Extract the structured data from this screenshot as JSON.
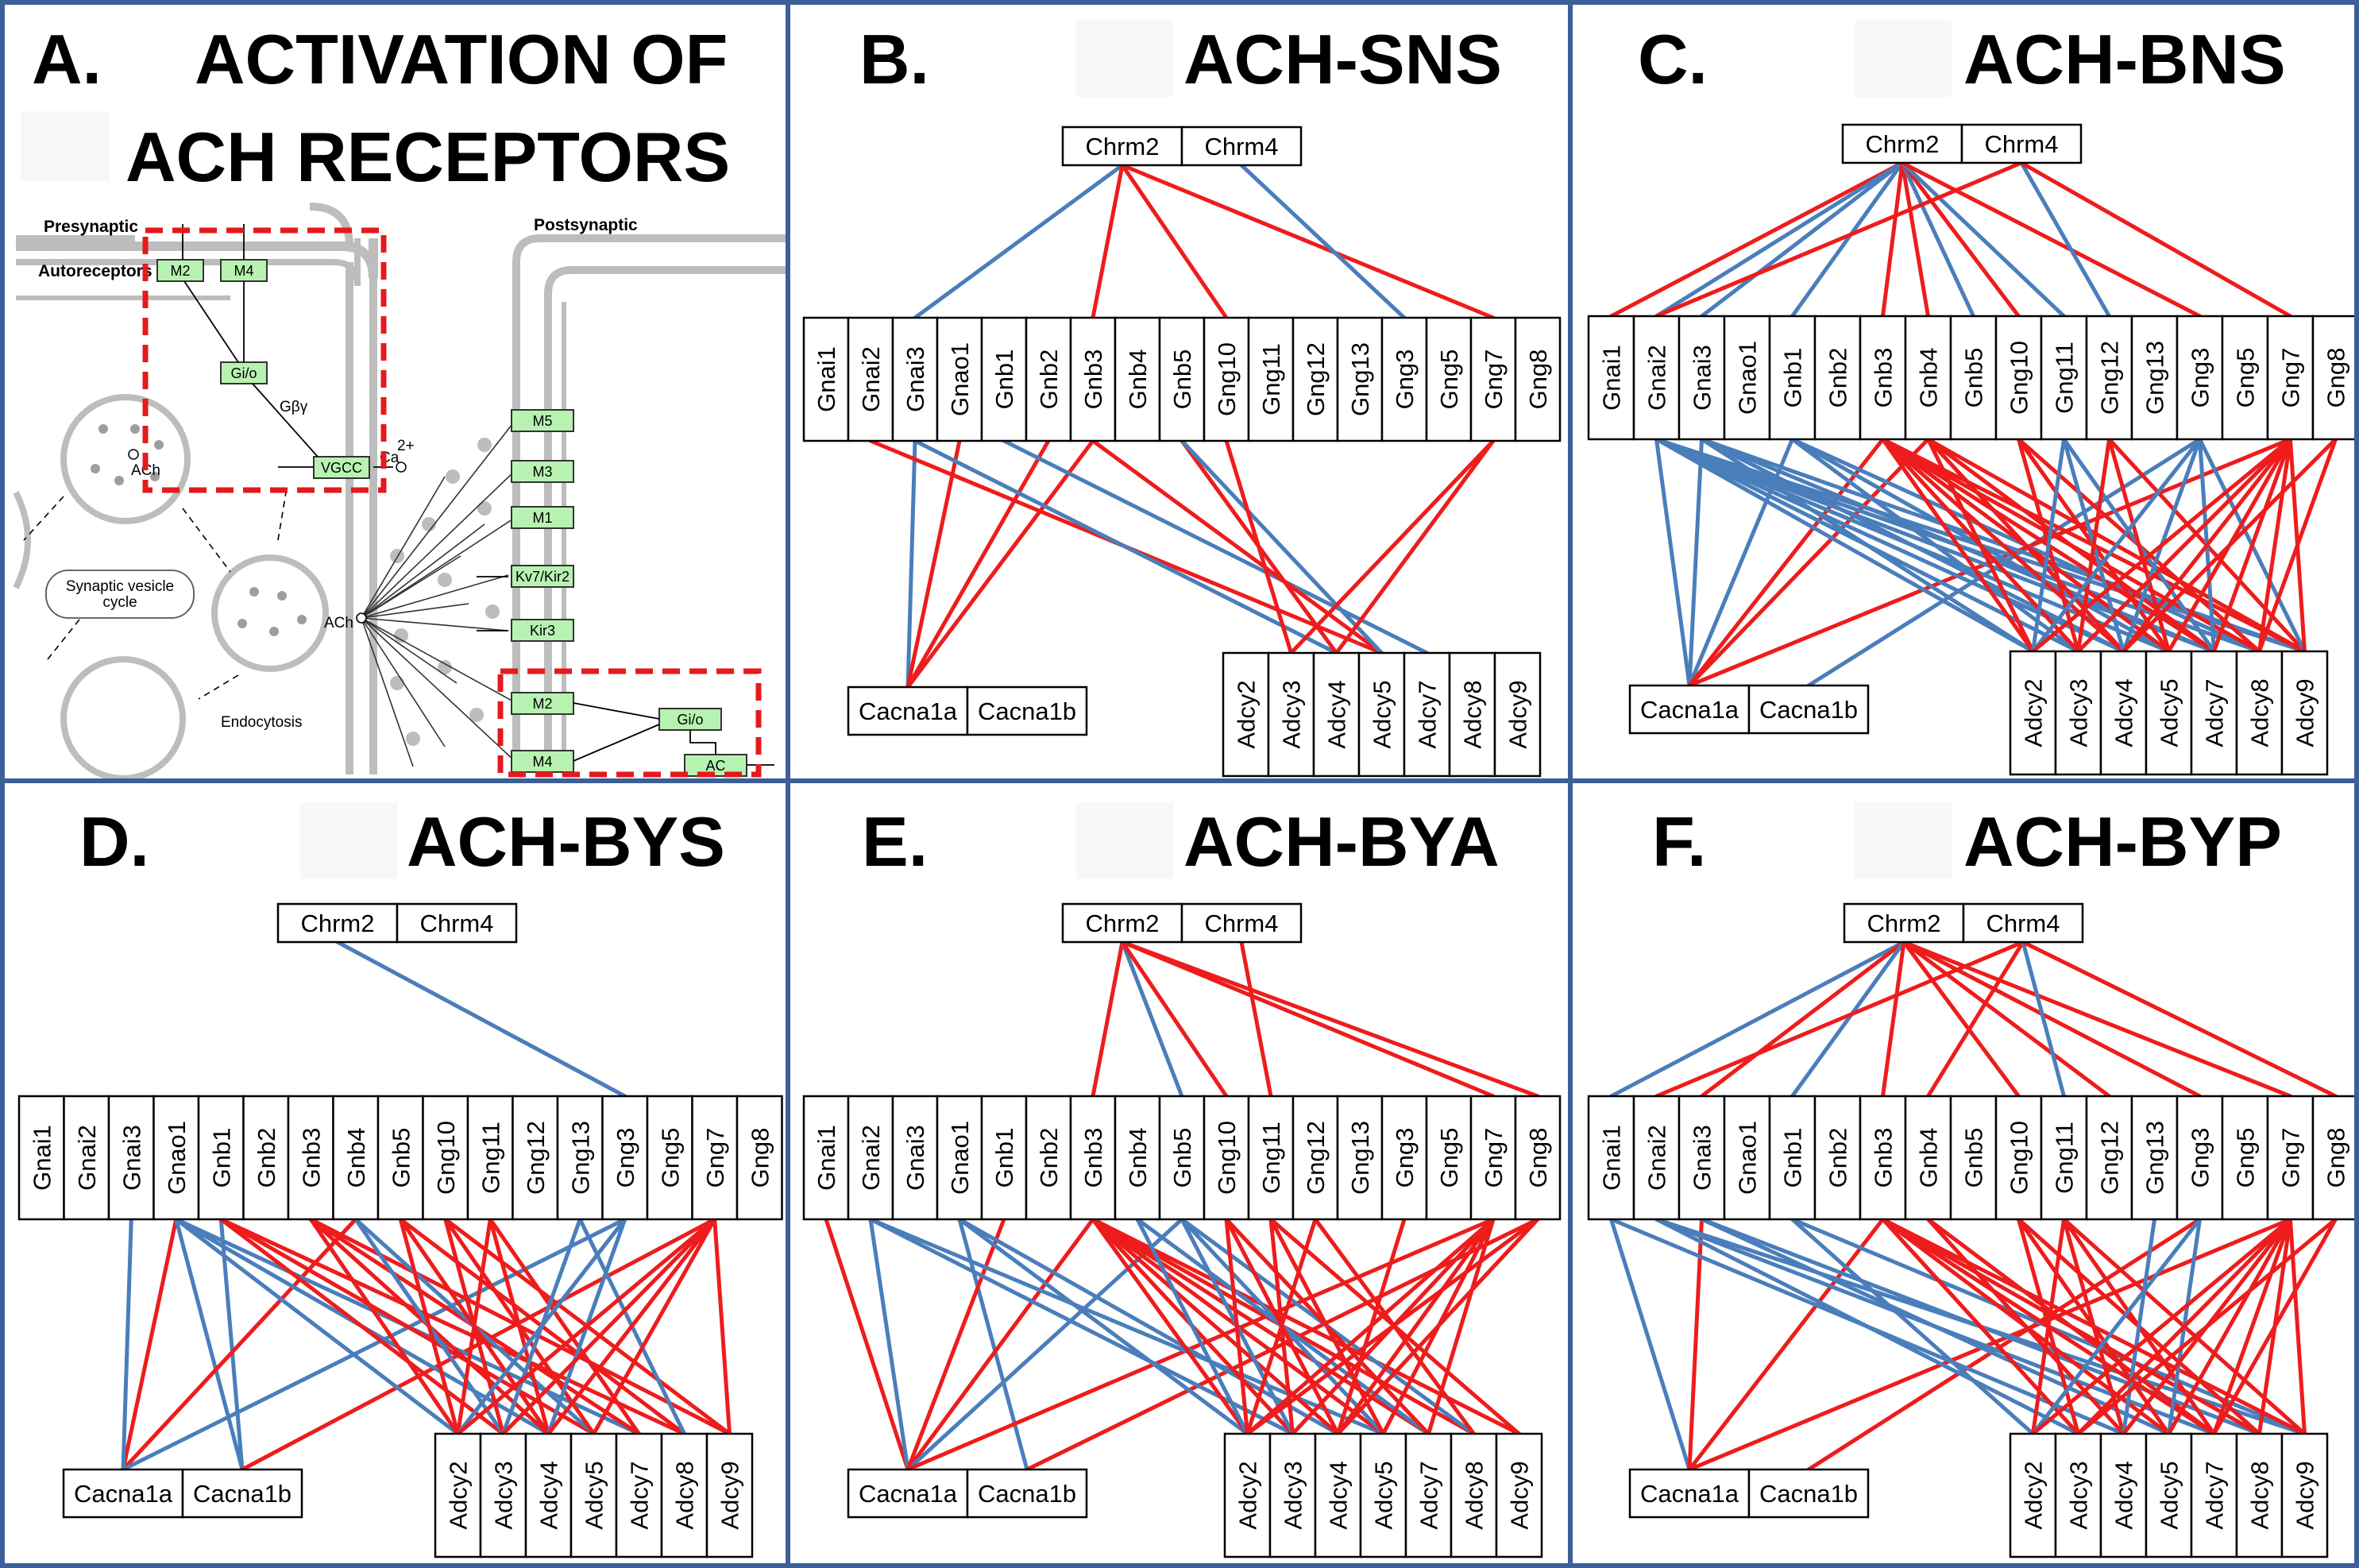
{
  "colors": {
    "positive_edge": "#ee1c1c",
    "negative_edge": "#4a7ebb",
    "border": "#3c5f97",
    "kegg_node": "#b7f2b1",
    "highlight_box": "#e41a1c"
  },
  "labels": {
    "chrm": [
      "Chrm2",
      "Chrm4"
    ],
    "g": [
      "Gnai1",
      "Gnai2",
      "Gnai3",
      "Gnao1",
      "Gnb1",
      "Gnb2",
      "Gnb3",
      "Gnb4",
      "Gnb5",
      "Gng10",
      "Gng11",
      "Gng12",
      "Gng13",
      "Gng3",
      "Gng5",
      "Gng7",
      "Gng8"
    ],
    "cac": [
      "Cacna1a",
      "Cacna1b"
    ],
    "adcy": [
      "Adcy2",
      "Adcy3",
      "Adcy4",
      "Adcy5",
      "Adcy7",
      "Adcy8",
      "Adcy9"
    ]
  },
  "panel_a": {
    "letter": "A.",
    "title_line1": "ACTIVATION OF",
    "title_line2": "ACH RECEPTORS",
    "presynaptic": "Presynaptic",
    "postsynaptic": "Postsynaptic",
    "autoreceptors": "Autoreceptors",
    "nodes": {
      "m2_pre": "M2",
      "m4_pre": "M4",
      "gio_pre": "Gi/o",
      "vgcc": "VGCC",
      "m5": "M5",
      "m3": "M3",
      "m1": "M1",
      "kv": "Kv7/Kir2",
      "kir3": "Kir3",
      "m2_post": "M2",
      "m4_post": "M4",
      "gio_post": "Gi/o",
      "ac": "AC"
    },
    "gby": "Gβγ",
    "ca": "Ca",
    "ca_sup": "2+",
    "ach_vesicle": "ACh",
    "ach_release": "ACh",
    "vesicle_cycle_line1": "Synaptic vesicle",
    "vesicle_cycle_line2": "cycle",
    "endocytosis": "Endocytosis"
  },
  "panels": [
    {
      "id": "B",
      "letter": "B.",
      "name": "ACH-SNS",
      "chrm_g": [
        [
          0,
          2,
          "n"
        ],
        [
          0,
          6,
          "p"
        ],
        [
          0,
          9,
          "p"
        ],
        [
          0,
          15,
          "p"
        ],
        [
          1,
          13,
          "n"
        ]
      ],
      "g_cac": [
        [
          2,
          0,
          "n"
        ],
        [
          3,
          0,
          "p"
        ],
        [
          5,
          0,
          "p"
        ],
        [
          6,
          0,
          "p"
        ]
      ],
      "g_adcy": [
        [
          1,
          3,
          "p"
        ],
        [
          2,
          2,
          "n"
        ],
        [
          4,
          4,
          "n"
        ],
        [
          6,
          3,
          "p"
        ],
        [
          8,
          2,
          "p"
        ],
        [
          8,
          3,
          "n"
        ],
        [
          9,
          1,
          "p"
        ],
        [
          15,
          1,
          "p"
        ],
        [
          15,
          2,
          "p"
        ]
      ]
    },
    {
      "id": "C",
      "letter": "C.",
      "name": "ACH-BNS",
      "chrm_g": [
        [
          0,
          0,
          "p"
        ],
        [
          0,
          1,
          "n"
        ],
        [
          0,
          2,
          "n"
        ],
        [
          0,
          4,
          "n"
        ],
        [
          0,
          6,
          "p"
        ],
        [
          0,
          7,
          "p"
        ],
        [
          0,
          8,
          "n"
        ],
        [
          0,
          9,
          "p"
        ],
        [
          0,
          10,
          "n"
        ],
        [
          0,
          13,
          "p"
        ],
        [
          1,
          1,
          "p"
        ],
        [
          1,
          11,
          "n"
        ],
        [
          1,
          15,
          "p"
        ]
      ],
      "g_cac": [
        [
          1,
          0,
          "n"
        ],
        [
          2,
          0,
          "n"
        ],
        [
          4,
          0,
          "n"
        ],
        [
          6,
          0,
          "p"
        ],
        [
          7,
          0,
          "p"
        ],
        [
          13,
          1,
          "n"
        ],
        [
          15,
          0,
          "p"
        ]
      ],
      "g_adcy": [
        [
          1,
          0,
          "n"
        ],
        [
          1,
          1,
          "n"
        ],
        [
          1,
          2,
          "n"
        ],
        [
          1,
          3,
          "n"
        ],
        [
          1,
          4,
          "n"
        ],
        [
          1,
          5,
          "n"
        ],
        [
          1,
          6,
          "n"
        ],
        [
          2,
          0,
          "n"
        ],
        [
          2,
          2,
          "n"
        ],
        [
          2,
          4,
          "n"
        ],
        [
          2,
          6,
          "n"
        ],
        [
          4,
          1,
          "n"
        ],
        [
          4,
          3,
          "n"
        ],
        [
          4,
          5,
          "n"
        ],
        [
          6,
          0,
          "p"
        ],
        [
          6,
          1,
          "p"
        ],
        [
          6,
          2,
          "p"
        ],
        [
          6,
          3,
          "p"
        ],
        [
          6,
          4,
          "p"
        ],
        [
          6,
          5,
          "p"
        ],
        [
          6,
          6,
          "p"
        ],
        [
          7,
          0,
          "p"
        ],
        [
          7,
          2,
          "p"
        ],
        [
          7,
          4,
          "p"
        ],
        [
          7,
          6,
          "p"
        ],
        [
          9,
          1,
          "p"
        ],
        [
          9,
          3,
          "p"
        ],
        [
          9,
          5,
          "p"
        ],
        [
          10,
          0,
          "n"
        ],
        [
          10,
          2,
          "n"
        ],
        [
          10,
          4,
          "n"
        ],
        [
          11,
          1,
          "p"
        ],
        [
          11,
          3,
          "p"
        ],
        [
          11,
          6,
          "p"
        ],
        [
          13,
          0,
          "n"
        ],
        [
          13,
          2,
          "n"
        ],
        [
          13,
          4,
          "n"
        ],
        [
          13,
          6,
          "n"
        ],
        [
          15,
          0,
          "p"
        ],
        [
          15,
          1,
          "p"
        ],
        [
          15,
          2,
          "p"
        ],
        [
          15,
          3,
          "p"
        ],
        [
          15,
          4,
          "p"
        ],
        [
          15,
          5,
          "p"
        ],
        [
          15,
          6,
          "p"
        ],
        [
          16,
          2,
          "p"
        ],
        [
          16,
          5,
          "p"
        ]
      ]
    },
    {
      "id": "D",
      "letter": "D.",
      "name": "ACH-BYS",
      "chrm_g": [
        [
          0,
          13,
          "n"
        ]
      ],
      "g_cac": [
        [
          3,
          0,
          "p"
        ],
        [
          3,
          1,
          "n"
        ],
        [
          4,
          1,
          "n"
        ],
        [
          7,
          0,
          "p"
        ],
        [
          13,
          0,
          "n"
        ],
        [
          15,
          1,
          "p"
        ],
        [
          2,
          0,
          "n"
        ]
      ],
      "g_adcy": [
        [
          3,
          0,
          "n"
        ],
        [
          3,
          2,
          "n"
        ],
        [
          3,
          4,
          "n"
        ],
        [
          4,
          1,
          "p"
        ],
        [
          4,
          3,
          "p"
        ],
        [
          4,
          5,
          "p"
        ],
        [
          6,
          0,
          "p"
        ],
        [
          6,
          2,
          "p"
        ],
        [
          6,
          4,
          "p"
        ],
        [
          6,
          6,
          "p"
        ],
        [
          7,
          1,
          "n"
        ],
        [
          7,
          3,
          "n"
        ],
        [
          8,
          0,
          "p"
        ],
        [
          8,
          2,
          "p"
        ],
        [
          8,
          5,
          "p"
        ],
        [
          9,
          1,
          "p"
        ],
        [
          9,
          3,
          "p"
        ],
        [
          9,
          6,
          "p"
        ],
        [
          10,
          0,
          "p"
        ],
        [
          10,
          2,
          "p"
        ],
        [
          10,
          4,
          "p"
        ],
        [
          12,
          1,
          "n"
        ],
        [
          12,
          5,
          "n"
        ],
        [
          13,
          0,
          "n"
        ],
        [
          13,
          2,
          "n"
        ],
        [
          15,
          0,
          "p"
        ],
        [
          15,
          1,
          "p"
        ],
        [
          15,
          2,
          "p"
        ],
        [
          15,
          3,
          "p"
        ],
        [
          15,
          6,
          "p"
        ]
      ]
    },
    {
      "id": "E",
      "letter": "E.",
      "name": "ACH-BYA",
      "chrm_g": [
        [
          0,
          6,
          "p"
        ],
        [
          0,
          8,
          "n"
        ],
        [
          0,
          9,
          "p"
        ],
        [
          0,
          15,
          "p"
        ],
        [
          0,
          16,
          "p"
        ],
        [
          1,
          10,
          "p"
        ]
      ],
      "g_cac": [
        [
          0,
          0,
          "p"
        ],
        [
          1,
          0,
          "n"
        ],
        [
          3,
          1,
          "n"
        ],
        [
          6,
          0,
          "p"
        ],
        [
          8,
          0,
          "n"
        ],
        [
          15,
          0,
          "p"
        ],
        [
          16,
          1,
          "p"
        ],
        [
          4,
          0,
          "p"
        ]
      ],
      "g_adcy": [
        [
          1,
          1,
          "n"
        ],
        [
          1,
          3,
          "n"
        ],
        [
          3,
          0,
          "n"
        ],
        [
          3,
          2,
          "n"
        ],
        [
          6,
          0,
          "p"
        ],
        [
          6,
          1,
          "p"
        ],
        [
          6,
          2,
          "p"
        ],
        [
          6,
          3,
          "p"
        ],
        [
          6,
          4,
          "p"
        ],
        [
          6,
          5,
          "p"
        ],
        [
          6,
          6,
          "p"
        ],
        [
          7,
          0,
          "n"
        ],
        [
          7,
          4,
          "n"
        ],
        [
          8,
          1,
          "n"
        ],
        [
          8,
          3,
          "n"
        ],
        [
          8,
          5,
          "n"
        ],
        [
          9,
          0,
          "p"
        ],
        [
          9,
          2,
          "p"
        ],
        [
          9,
          4,
          "p"
        ],
        [
          10,
          1,
          "p"
        ],
        [
          10,
          3,
          "p"
        ],
        [
          10,
          6,
          "p"
        ],
        [
          11,
          0,
          "p"
        ],
        [
          11,
          5,
          "p"
        ],
        [
          13,
          2,
          "p"
        ],
        [
          15,
          0,
          "p"
        ],
        [
          15,
          1,
          "p"
        ],
        [
          15,
          2,
          "p"
        ],
        [
          15,
          3,
          "p"
        ],
        [
          15,
          4,
          "p"
        ],
        [
          16,
          0,
          "p"
        ],
        [
          16,
          2,
          "p"
        ]
      ]
    },
    {
      "id": "F",
      "letter": "F.",
      "name": "ACH-BYP",
      "chrm_g": [
        [
          0,
          0,
          "n"
        ],
        [
          0,
          2,
          "p"
        ],
        [
          0,
          4,
          "n"
        ],
        [
          0,
          6,
          "p"
        ],
        [
          0,
          9,
          "p"
        ],
        [
          0,
          11,
          "p"
        ],
        [
          0,
          13,
          "p"
        ],
        [
          0,
          15,
          "p"
        ],
        [
          1,
          1,
          "p"
        ],
        [
          1,
          7,
          "p"
        ],
        [
          1,
          10,
          "n"
        ],
        [
          1,
          16,
          "p"
        ]
      ],
      "g_cac": [
        [
          0,
          0,
          "n"
        ],
        [
          2,
          0,
          "p"
        ],
        [
          6,
          0,
          "p"
        ],
        [
          13,
          1,
          "p"
        ],
        [
          15,
          0,
          "p"
        ]
      ],
      "g_adcy": [
        [
          0,
          2,
          "n"
        ],
        [
          1,
          1,
          "n"
        ],
        [
          1,
          4,
          "n"
        ],
        [
          1,
          6,
          "n"
        ],
        [
          2,
          3,
          "n"
        ],
        [
          2,
          5,
          "n"
        ],
        [
          4,
          0,
          "n"
        ],
        [
          4,
          6,
          "n"
        ],
        [
          6,
          1,
          "p"
        ],
        [
          6,
          3,
          "p"
        ],
        [
          6,
          4,
          "p"
        ],
        [
          6,
          5,
          "p"
        ],
        [
          6,
          6,
          "p"
        ],
        [
          7,
          2,
          "p"
        ],
        [
          7,
          4,
          "p"
        ],
        [
          9,
          1,
          "p"
        ],
        [
          9,
          3,
          "p"
        ],
        [
          9,
          5,
          "p"
        ],
        [
          10,
          0,
          "p"
        ],
        [
          10,
          2,
          "p"
        ],
        [
          10,
          4,
          "p"
        ],
        [
          10,
          6,
          "p"
        ],
        [
          12,
          2,
          "n"
        ],
        [
          13,
          0,
          "n"
        ],
        [
          13,
          3,
          "n"
        ],
        [
          15,
          0,
          "p"
        ],
        [
          15,
          1,
          "p"
        ],
        [
          15,
          2,
          "p"
        ],
        [
          15,
          3,
          "p"
        ],
        [
          15,
          4,
          "p"
        ],
        [
          15,
          5,
          "p"
        ],
        [
          15,
          6,
          "p"
        ],
        [
          16,
          1,
          "p"
        ],
        [
          16,
          4,
          "p"
        ]
      ]
    }
  ]
}
